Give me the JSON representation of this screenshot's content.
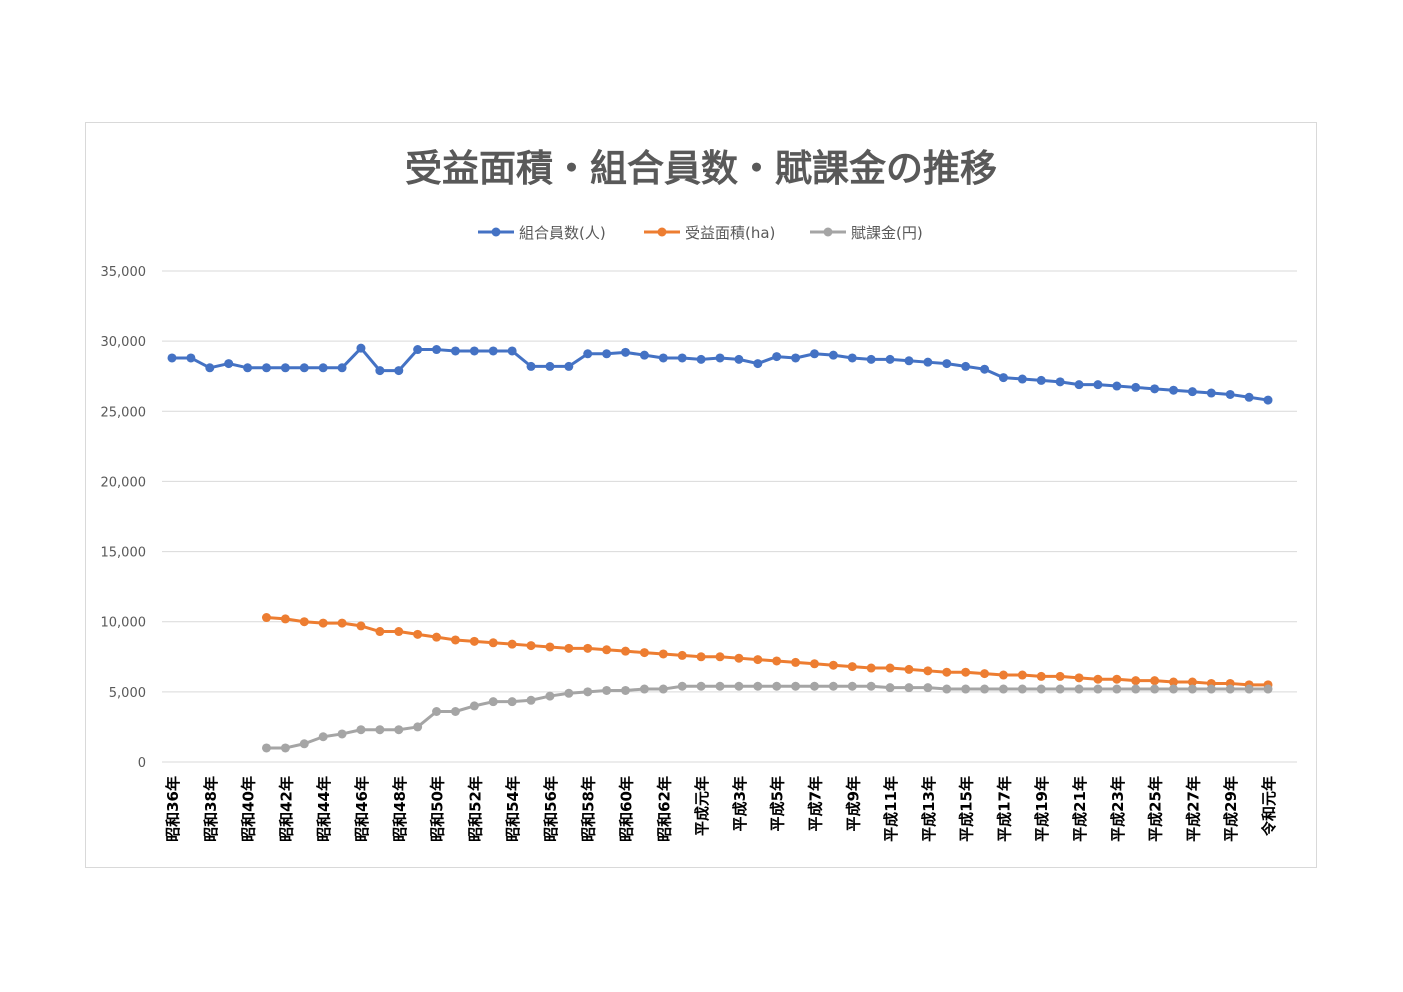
{
  "chart_data": {
    "type": "line",
    "title": "受益面積・組合員数・賦課金の推移",
    "xlabel": "",
    "ylabel": "",
    "ylim": [
      0,
      35000
    ],
    "yticks": [
      0,
      5000,
      10000,
      15000,
      20000,
      25000,
      30000,
      35000
    ],
    "ytick_labels": [
      "0",
      "5,000",
      "10,000",
      "15,000",
      "20,000",
      "25,000",
      "30,000",
      "35,000"
    ],
    "grid": true,
    "legend_position": "top-center",
    "categories": [
      "昭和36年",
      "昭和37年",
      "昭和38年",
      "昭和39年",
      "昭和40年",
      "昭和41年",
      "昭和42年",
      "昭和43年",
      "昭和44年",
      "昭和45年",
      "昭和46年",
      "昭和47年",
      "昭和48年",
      "昭和49年",
      "昭和50年",
      "昭和51年",
      "昭和52年",
      "昭和53年",
      "昭和54年",
      "昭和55年",
      "昭和56年",
      "昭和57年",
      "昭和58年",
      "昭和59年",
      "昭和60年",
      "昭和61年",
      "昭和62年",
      "昭和63年",
      "平成元年",
      "平成2年",
      "平成3年",
      "平成4年",
      "平成5年",
      "平成6年",
      "平成7年",
      "平成8年",
      "平成9年",
      "平成10年",
      "平成11年",
      "平成12年",
      "平成13年",
      "平成14年",
      "平成15年",
      "平成16年",
      "平成17年",
      "平成18年",
      "平成19年",
      "平成20年",
      "平成21年",
      "平成22年",
      "平成23年",
      "平成24年",
      "平成25年",
      "平成26年",
      "平成27年",
      "平成28年",
      "平成29年",
      "平成30年",
      "令和元年"
    ],
    "visible_tick_labels": [
      "昭和36年",
      "昭和38年",
      "昭和40年",
      "昭和42年",
      "昭和44年",
      "昭和46年",
      "昭和48年",
      "昭和50年",
      "昭和52年",
      "昭和54年",
      "昭和56年",
      "昭和58年",
      "昭和60年",
      "昭和62年",
      "平成元年",
      "平成3年",
      "平成5年",
      "平成7年",
      "平成9年",
      "平成11年",
      "平成13年",
      "平成15年",
      "平成17年",
      "平成19年",
      "平成21年",
      "平成23年",
      "平成25年",
      "平成27年",
      "平成29年",
      "令和元年"
    ],
    "series": [
      {
        "name": "組合員数(人)",
        "color": "#4472c4",
        "values": [
          28800,
          28800,
          28100,
          28400,
          28100,
          28100,
          28100,
          28100,
          28100,
          28100,
          29500,
          27900,
          27900,
          29400,
          29400,
          29300,
          29300,
          29300,
          29300,
          28200,
          28200,
          28200,
          29100,
          29100,
          29200,
          29000,
          28800,
          28800,
          28700,
          28800,
          28700,
          28400,
          28900,
          28800,
          29100,
          29000,
          28800,
          28700,
          28700,
          28600,
          28500,
          28400,
          28200,
          28000,
          27400,
          27300,
          27200,
          27100,
          26900,
          26900,
          26800,
          26700,
          26600,
          26500,
          26400,
          26300,
          26200,
          26000,
          25800
        ]
      },
      {
        "name": "受益面積(ha)",
        "color": "#ed7d31",
        "values": [
          null,
          null,
          null,
          null,
          null,
          10300,
          10200,
          10000,
          9900,
          9900,
          9700,
          9300,
          9300,
          9100,
          8900,
          8700,
          8600,
          8500,
          8400,
          8300,
          8200,
          8100,
          8100,
          8000,
          7900,
          7800,
          7700,
          7600,
          7500,
          7500,
          7400,
          7300,
          7200,
          7100,
          7000,
          6900,
          6800,
          6700,
          6700,
          6600,
          6500,
          6400,
          6400,
          6300,
          6200,
          6200,
          6100,
          6100,
          6000,
          5900,
          5900,
          5800,
          5800,
          5700,
          5700,
          5600,
          5600,
          5500,
          5500
        ]
      },
      {
        "name": "賦課金(円)",
        "color": "#a5a5a5",
        "values": [
          null,
          null,
          null,
          null,
          null,
          1000,
          1000,
          1300,
          1800,
          2000,
          2300,
          2300,
          2300,
          2500,
          3600,
          3600,
          4000,
          4300,
          4300,
          4400,
          4700,
          4900,
          5000,
          5100,
          5100,
          5200,
          5200,
          5400,
          5400,
          5400,
          5400,
          5400,
          5400,
          5400,
          5400,
          5400,
          5400,
          5400,
          5300,
          5300,
          5300,
          5200,
          5200,
          5200,
          5200,
          5200,
          5200,
          5200,
          5200,
          5200,
          5200,
          5200,
          5200,
          5200,
          5200,
          5200,
          5200,
          5200,
          5200
        ]
      }
    ]
  }
}
